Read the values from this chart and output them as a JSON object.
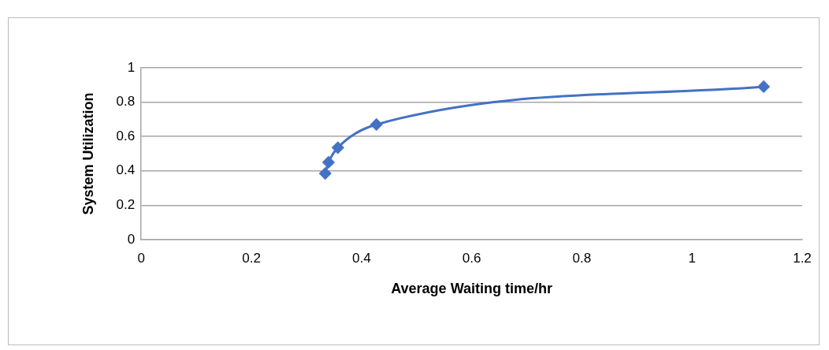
{
  "chart_data": {
    "type": "line",
    "xlabel": "Average Waiting time/hr",
    "ylabel": "System Utilization",
    "x": [
      0.334,
      0.34,
      0.357,
      0.427,
      1.13
    ],
    "series": [
      {
        "color": "#4472c4",
        "values": [
          0.385,
          0.45,
          0.535,
          0.67,
          0.89
        ]
      }
    ],
    "xlim": [
      0,
      1.2
    ],
    "xticks": [
      0,
      0.2,
      0.4,
      0.6,
      0.8,
      1,
      1.2
    ],
    "ylim": [
      0,
      1
    ],
    "yticks": [
      0,
      0.2,
      0.4,
      0.6,
      0.8,
      1
    ],
    "grid": "y",
    "legend": false,
    "marker": "diamond",
    "line_style": "solid"
  }
}
